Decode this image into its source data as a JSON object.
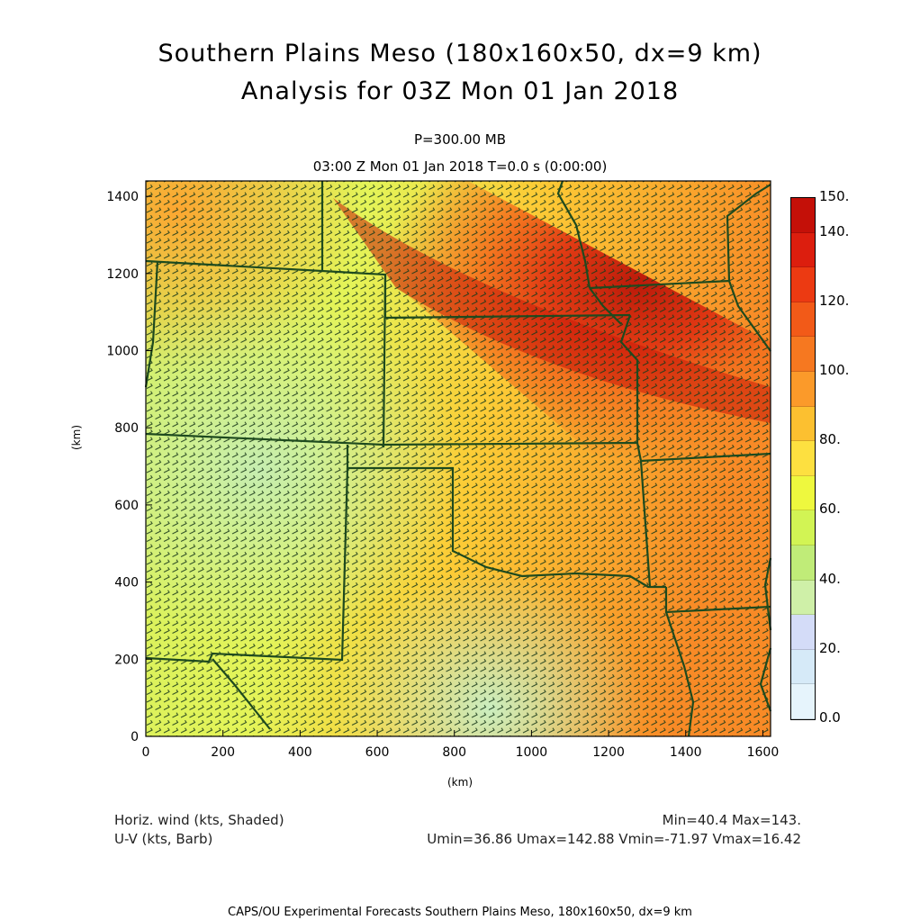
{
  "title_line1": "Southern Plains Meso (180x160x50, dx=9 km)",
  "title_line2": "Analysis for 03Z Mon 01 Jan 2018",
  "pressure_label": "P=300.00 MB",
  "time_label": "03:00 Z Mon 01 Jan 2018    T=0.0 s (0:00:00)",
  "x_axis": {
    "label": "(km)",
    "ticks": [
      "0",
      "200",
      "400",
      "600",
      "800",
      "1000",
      "1200",
      "1400",
      "1600"
    ],
    "range": [
      0,
      1620
    ]
  },
  "y_axis": {
    "label": "(km)",
    "ticks": [
      "0",
      "200",
      "400",
      "600",
      "800",
      "1000",
      "1200",
      "1400"
    ],
    "range": [
      0,
      1440
    ]
  },
  "field_label": "Horiz. wind (kts, Shaded)",
  "barb_label": "U-V (kts, Barb)",
  "minmax": "Min=40.4 Max=143.",
  "uv_stats": "Umin=36.86 Umax=142.88 Vmin=-71.97 Vmax=16.42",
  "credit": "CAPS/OU Experimental Forecasts  Southern Plains Meso, 180x160x50, dx=9 km",
  "colorbar": {
    "labels": [
      "150.",
      "140.",
      "120.",
      "100.",
      "80.",
      "60.",
      "40.",
      "20.",
      "0.0"
    ],
    "colors": [
      "#c41008",
      "#dc1e0e",
      "#ec3a12",
      "#f25a18",
      "#f67820",
      "#fb9a2a",
      "#fcc030",
      "#fde040",
      "#eef83e",
      "#d2f454",
      "#c0ec78",
      "#cff0a8",
      "#d4dcf8",
      "#d6eaf8",
      "#e6f4fc"
    ]
  },
  "map_colors": {
    "border": "#1e4a1e",
    "barb": "#1a3a1a"
  }
}
